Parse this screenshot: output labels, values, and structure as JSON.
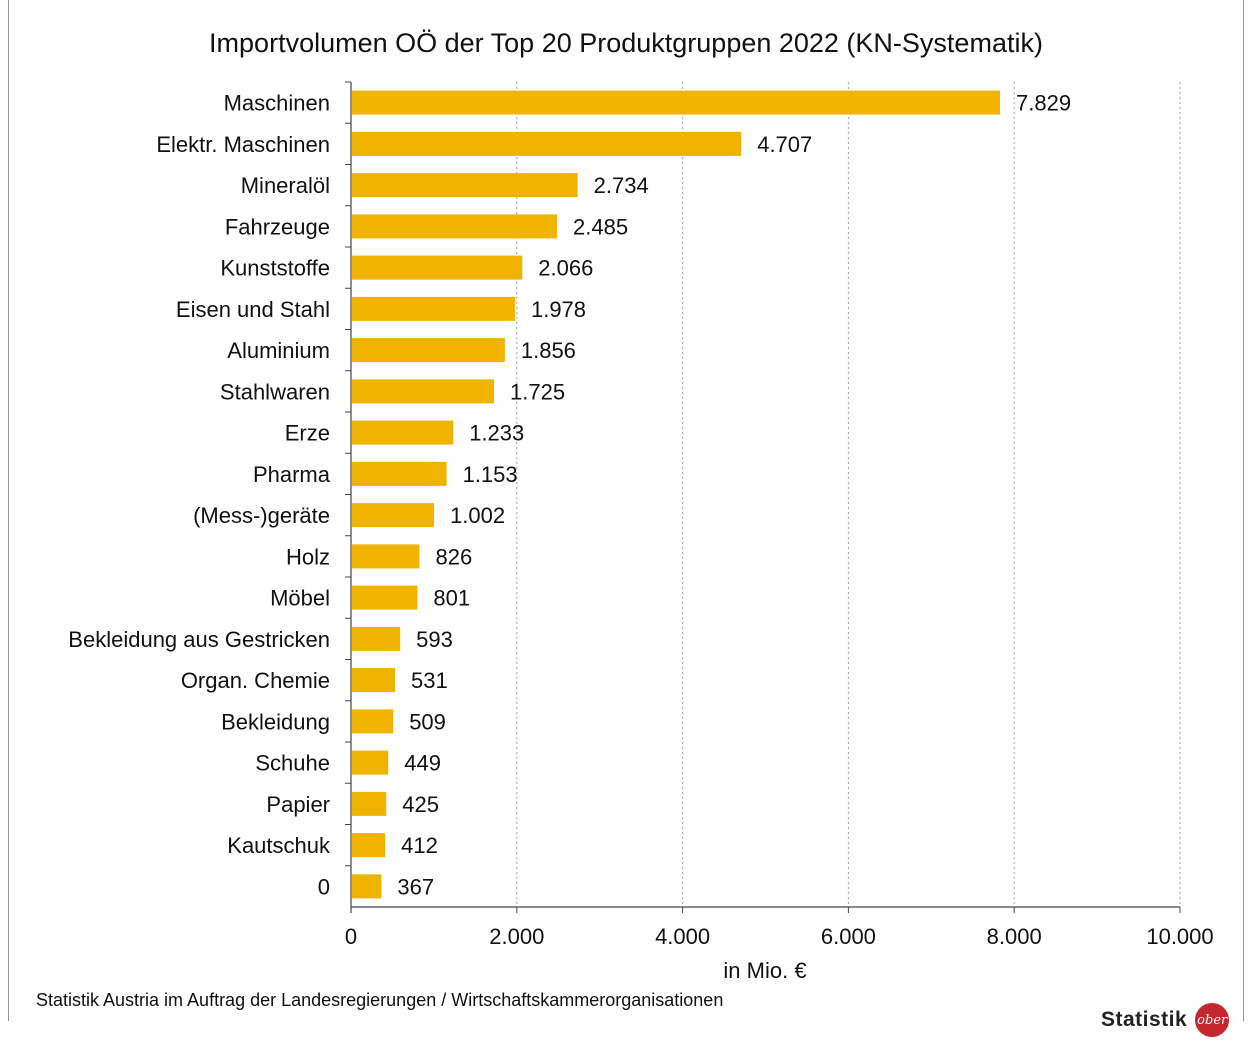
{
  "chart_data": {
    "type": "bar",
    "orientation": "horizontal",
    "title": "Importvolumen OÖ der Top 20 Produktgruppen 2022 (KN-Systematik)",
    "xlabel": "in Mio. €",
    "xlim": [
      0,
      10000
    ],
    "xticks": [
      0,
      2000,
      4000,
      6000,
      8000,
      10000
    ],
    "xtick_labels": [
      "0",
      "2.000",
      "4.000",
      "6.000",
      "8.000",
      "10.000"
    ],
    "grid": "vertical-dotted",
    "bar_color": "#f0b400",
    "categories": [
      "Maschinen",
      "Elektr. Maschinen",
      "Mineralöl",
      "Fahrzeuge",
      "Kunststoffe",
      "Eisen und Stahl",
      "Aluminium",
      "Stahlwaren",
      "Erze",
      "Pharma",
      "(Mess-)geräte",
      "Holz",
      "Möbel",
      "Bekleidung aus Gestricken",
      "Organ. Chemie",
      "Bekleidung",
      "Schuhe",
      "Papier",
      "Kautschuk",
      "0"
    ],
    "values": [
      7829,
      4707,
      2734,
      2485,
      2066,
      1978,
      1856,
      1725,
      1233,
      1153,
      1002,
      826,
      801,
      593,
      531,
      509,
      449,
      425,
      412,
      367
    ],
    "value_labels": [
      "7.829",
      "4.707",
      "2.734",
      "2.485",
      "2.066",
      "1.978",
      "1.856",
      "1.725",
      "1.233",
      "1.153",
      "1.002",
      "826",
      "801",
      "593",
      "531",
      "509",
      "449",
      "425",
      "412",
      "367"
    ]
  },
  "footer": {
    "source": "Statistik Austria im Auftrag der Landesregierungen / Wirtschaftskammerorganisationen",
    "logo_text": "Statistik",
    "logo_badge": "ober"
  }
}
